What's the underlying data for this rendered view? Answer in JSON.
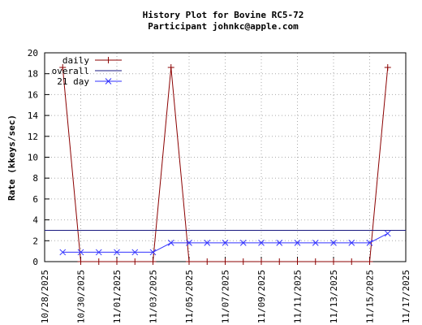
{
  "chart_data": {
    "type": "line",
    "title": "History Plot for Bovine RC5-72",
    "subtitle": "Participant johnkc@apple.com",
    "y_label": "Rate (kkeys/sec)",
    "x": [
      "10/29/2025",
      "10/30/2025",
      "10/31/2025",
      "11/01/2025",
      "11/02/2025",
      "11/03/2025",
      "11/04/2025",
      "11/05/2025",
      "11/06/2025",
      "11/07/2025",
      "11/08/2025",
      "11/09/2025",
      "11/10/2025",
      "11/11/2025",
      "11/12/2025",
      "11/13/2025",
      "11/14/2025",
      "11/15/2025",
      "11/16/2025"
    ],
    "series": [
      {
        "name": "daily",
        "color": "#8b0000",
        "marker": "+",
        "values": [
          18.6,
          0,
          0,
          0,
          0,
          0,
          18.6,
          0,
          0,
          0,
          0,
          0,
          0,
          0,
          0,
          0,
          0,
          0,
          18.6
        ]
      },
      {
        "name": "overall",
        "color": "#1a1a80",
        "value": 3
      },
      {
        "name": "21 day",
        "color": "#3333ff",
        "marker": "x",
        "values": [
          0.9,
          0.9,
          0.9,
          0.9,
          0.9,
          0.9,
          1.8,
          1.8,
          1.8,
          1.8,
          1.8,
          1.8,
          1.8,
          1.8,
          1.8,
          1.8,
          1.8,
          1.8,
          2.7
        ]
      }
    ],
    "xlim": [
      "10/28/2025",
      "11/17/2025"
    ],
    "xticks": [
      "10/28/2025",
      "10/30/2025",
      "11/01/2025",
      "11/03/2025",
      "11/05/2025",
      "11/07/2025",
      "11/09/2025",
      "11/11/2025",
      "11/13/2025",
      "11/15/2025",
      "11/17/2025"
    ],
    "ylim": [
      0,
      20
    ],
    "yticks": [
      0,
      2,
      4,
      6,
      8,
      10,
      12,
      14,
      16,
      18,
      20
    ],
    "grid": true,
    "legend": "top-left"
  }
}
